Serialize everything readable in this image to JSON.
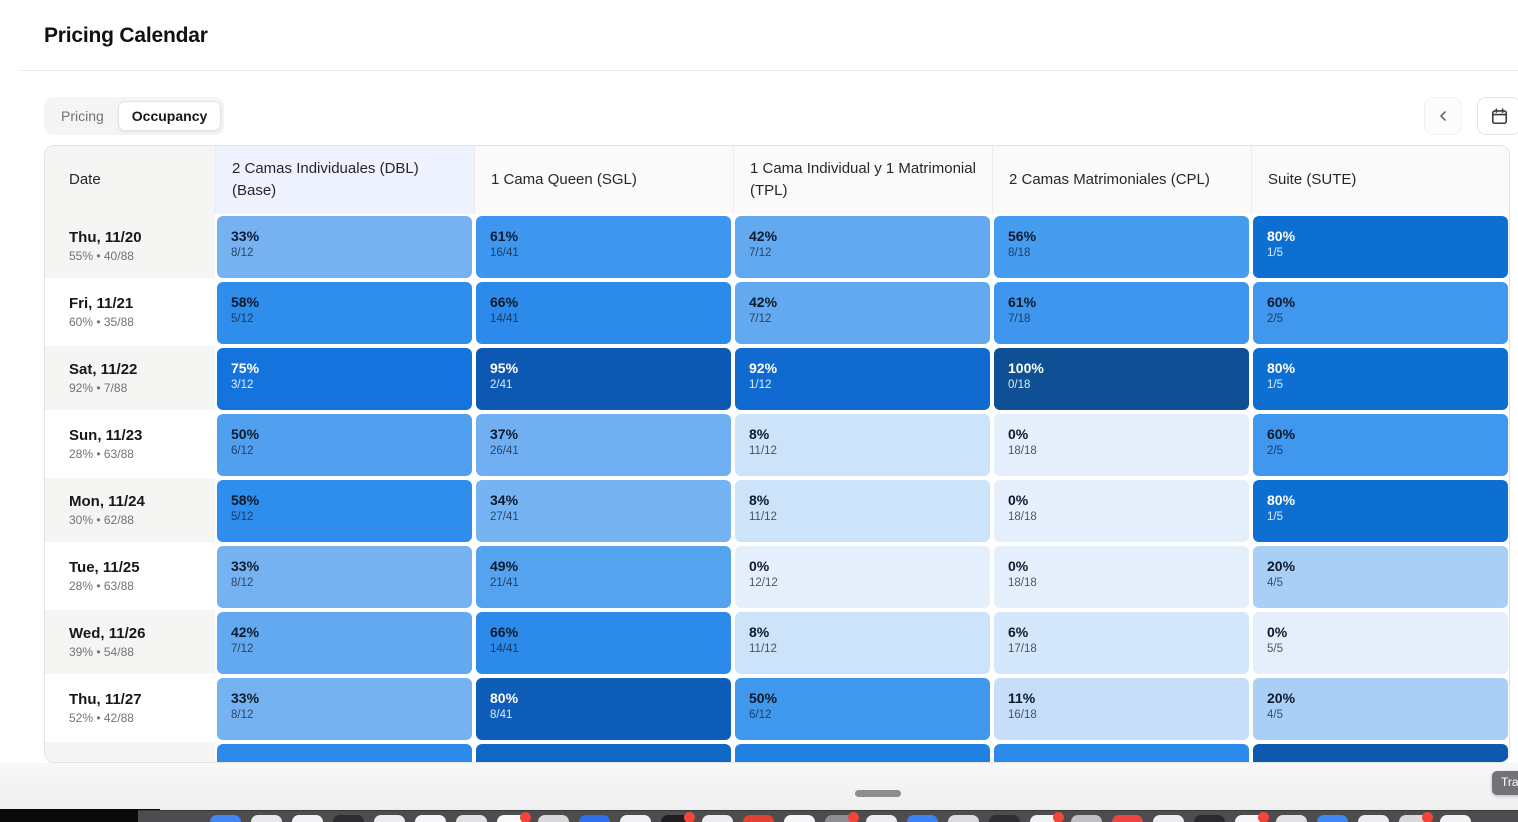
{
  "header": {
    "title": "Pricing Calendar"
  },
  "tabs": [
    {
      "label": "Pricing",
      "active": false
    },
    {
      "label": "Occupancy",
      "active": true
    }
  ],
  "toolbar": {
    "prev_icon": "chevron-left",
    "calendar_icon": "calendar"
  },
  "table": {
    "date_header": "Date",
    "columns": [
      {
        "label": "2 Camas Individuales (DBL) (Base)",
        "highlight": true
      },
      {
        "label": "1 Cama Queen (SGL)",
        "highlight": false
      },
      {
        "label": "1 Cama Individual y 1 Matrimonial (TPL)",
        "highlight": false
      },
      {
        "label": "2 Camas Matrimoniales (CPL)",
        "highlight": false
      },
      {
        "label": "Suite (SUTE)",
        "highlight": false
      }
    ],
    "rows": [
      {
        "date": "Thu, 11/20",
        "summary": "55% • 40/88",
        "shaded": true,
        "cells": [
          {
            "pct": "33%",
            "frac": "8/12",
            "bg": "#76b2f2",
            "light": false
          },
          {
            "pct": "61%",
            "frac": "16/41",
            "bg": "#3e96ee",
            "light": false
          },
          {
            "pct": "42%",
            "frac": "7/12",
            "bg": "#63a9f0",
            "light": false
          },
          {
            "pct": "56%",
            "frac": "8/18",
            "bg": "#469cee",
            "light": false
          },
          {
            "pct": "80%",
            "frac": "1/5",
            "bg": "#0e6fd2",
            "light": true
          }
        ]
      },
      {
        "date": "Fri, 11/21",
        "summary": "60% • 35/88",
        "shaded": false,
        "cells": [
          {
            "pct": "58%",
            "frac": "5/12",
            "bg": "#2f8deb",
            "light": false
          },
          {
            "pct": "66%",
            "frac": "14/41",
            "bg": "#2b8aea",
            "light": false
          },
          {
            "pct": "42%",
            "frac": "7/12",
            "bg": "#63a9f0",
            "light": false
          },
          {
            "pct": "61%",
            "frac": "7/18",
            "bg": "#3e96ee",
            "light": false
          },
          {
            "pct": "60%",
            "frac": "2/5",
            "bg": "#3f97ee",
            "light": false
          }
        ]
      },
      {
        "date": "Sat, 11/22",
        "summary": "92% • 7/88",
        "shaded": true,
        "cells": [
          {
            "pct": "75%",
            "frac": "3/12",
            "bg": "#1473dc",
            "light": true
          },
          {
            "pct": "95%",
            "frac": "2/41",
            "bg": "#0d58b2",
            "light": true
          },
          {
            "pct": "92%",
            "frac": "1/12",
            "bg": "#116ad0",
            "light": true
          },
          {
            "pct": "100%",
            "frac": "0/18",
            "bg": "#0e5093",
            "light": true
          },
          {
            "pct": "80%",
            "frac": "1/5",
            "bg": "#0e6fd2",
            "light": true
          }
        ]
      },
      {
        "date": "Sun, 11/23",
        "summary": "28% • 63/88",
        "shaded": false,
        "cells": [
          {
            "pct": "50%",
            "frac": "6/12",
            "bg": "#51a0ef",
            "light": false
          },
          {
            "pct": "37%",
            "frac": "26/41",
            "bg": "#70b0f2",
            "light": false
          },
          {
            "pct": "8%",
            "frac": "11/12",
            "bg": "#cde3fa",
            "light": false
          },
          {
            "pct": "0%",
            "frac": "18/18",
            "bg": "#e4effb",
            "light": false
          },
          {
            "pct": "60%",
            "frac": "2/5",
            "bg": "#3f97ee",
            "light": false
          }
        ]
      },
      {
        "date": "Mon, 11/24",
        "summary": "30% • 62/88",
        "shaded": true,
        "cells": [
          {
            "pct": "58%",
            "frac": "5/12",
            "bg": "#2f8deb",
            "light": false
          },
          {
            "pct": "34%",
            "frac": "27/41",
            "bg": "#75b3f2",
            "light": false
          },
          {
            "pct": "8%",
            "frac": "11/12",
            "bg": "#cde3fa",
            "light": false
          },
          {
            "pct": "0%",
            "frac": "18/18",
            "bg": "#e4effb",
            "light": false
          },
          {
            "pct": "80%",
            "frac": "1/5",
            "bg": "#0e6fd2",
            "light": true
          }
        ]
      },
      {
        "date": "Tue, 11/25",
        "summary": "28% • 63/88",
        "shaded": false,
        "cells": [
          {
            "pct": "33%",
            "frac": "8/12",
            "bg": "#76b2f2",
            "light": false
          },
          {
            "pct": "49%",
            "frac": "21/41",
            "bg": "#55a3ef",
            "light": false
          },
          {
            "pct": "0%",
            "frac": "12/12",
            "bg": "#e4effb",
            "light": false
          },
          {
            "pct": "0%",
            "frac": "18/18",
            "bg": "#e4effb",
            "light": false
          },
          {
            "pct": "20%",
            "frac": "4/5",
            "bg": "#a9cff7",
            "light": false
          }
        ]
      },
      {
        "date": "Wed, 11/26",
        "summary": "39% • 54/88",
        "shaded": true,
        "cells": [
          {
            "pct": "42%",
            "frac": "7/12",
            "bg": "#63a9f0",
            "light": false
          },
          {
            "pct": "66%",
            "frac": "14/41",
            "bg": "#2b8aea",
            "light": false
          },
          {
            "pct": "8%",
            "frac": "11/12",
            "bg": "#cde3fa",
            "light": false
          },
          {
            "pct": "6%",
            "frac": "17/18",
            "bg": "#d4e7fb",
            "light": false
          },
          {
            "pct": "0%",
            "frac": "5/5",
            "bg": "#e4effb",
            "light": false
          }
        ]
      },
      {
        "date": "Thu, 11/27",
        "summary": "52% • 42/88",
        "shaded": false,
        "cells": [
          {
            "pct": "33%",
            "frac": "8/12",
            "bg": "#76b2f2",
            "light": false
          },
          {
            "pct": "80%",
            "frac": "8/41",
            "bg": "#0e5eb9",
            "light": true
          },
          {
            "pct": "50%",
            "frac": "6/12",
            "bg": "#4098ed",
            "light": false
          },
          {
            "pct": "11%",
            "frac": "16/18",
            "bg": "#c6def9",
            "light": false
          },
          {
            "pct": "20%",
            "frac": "4/5",
            "bg": "#a9cff7",
            "light": false
          }
        ]
      }
    ],
    "partial_row": {
      "shaded": true,
      "colors": [
        "#2c8bea",
        "#1167c6",
        "#2081e2",
        "#2c8bea",
        "#0e58ae"
      ]
    }
  },
  "overlay": {
    "tooltip_label": "Tra",
    "scrollbar": "horizontal-scroll-thumb"
  },
  "theme": {
    "header_highlight": "#eef2ff",
    "row_stripe": "#f5f5f4",
    "accent_dark_blue": "#0e5093",
    "accent_blue": "#2f8deb"
  },
  "dock": {
    "icons": [
      {
        "color": "#4285f4",
        "badge": false
      },
      {
        "color": "#e9e9eb",
        "badge": false
      },
      {
        "color": "#f2f2f4",
        "badge": false
      },
      {
        "color": "#2d2d2f",
        "badge": false
      },
      {
        "color": "#ededef",
        "badge": false
      },
      {
        "color": "#f6f6f8",
        "badge": false
      },
      {
        "color": "#e2e2e4",
        "badge": false
      },
      {
        "color": "#fafafa",
        "badge": true
      },
      {
        "color": "#d9d9db",
        "badge": false
      },
      {
        "color": "#2f6fed",
        "badge": false
      },
      {
        "color": "#f0f0f2",
        "badge": false
      },
      {
        "color": "#1f1f21",
        "badge": true
      },
      {
        "color": "#ededef",
        "badge": false
      },
      {
        "color": "#e34133",
        "badge": false
      },
      {
        "color": "#f6f6f8",
        "badge": false
      },
      {
        "color": "#8f8f92",
        "badge": true
      },
      {
        "color": "#ededef",
        "badge": false
      },
      {
        "color": "#3b82f6",
        "badge": false
      },
      {
        "color": "#dcdcde",
        "badge": false
      },
      {
        "color": "#303032",
        "badge": false
      },
      {
        "color": "#f2f2f4",
        "badge": true
      },
      {
        "color": "#c0c0c2",
        "badge": false
      },
      {
        "color": "#ef4444",
        "badge": false
      },
      {
        "color": "#ededef",
        "badge": false
      },
      {
        "color": "#2b2b2d",
        "badge": false
      },
      {
        "color": "#f6f6f8",
        "badge": true
      },
      {
        "color": "#e2e2e4",
        "badge": false
      },
      {
        "color": "#4285f4",
        "badge": false
      },
      {
        "color": "#ededef",
        "badge": false
      },
      {
        "color": "#d9d9db",
        "badge": true
      },
      {
        "color": "#f2f2f4",
        "badge": false
      }
    ]
  }
}
